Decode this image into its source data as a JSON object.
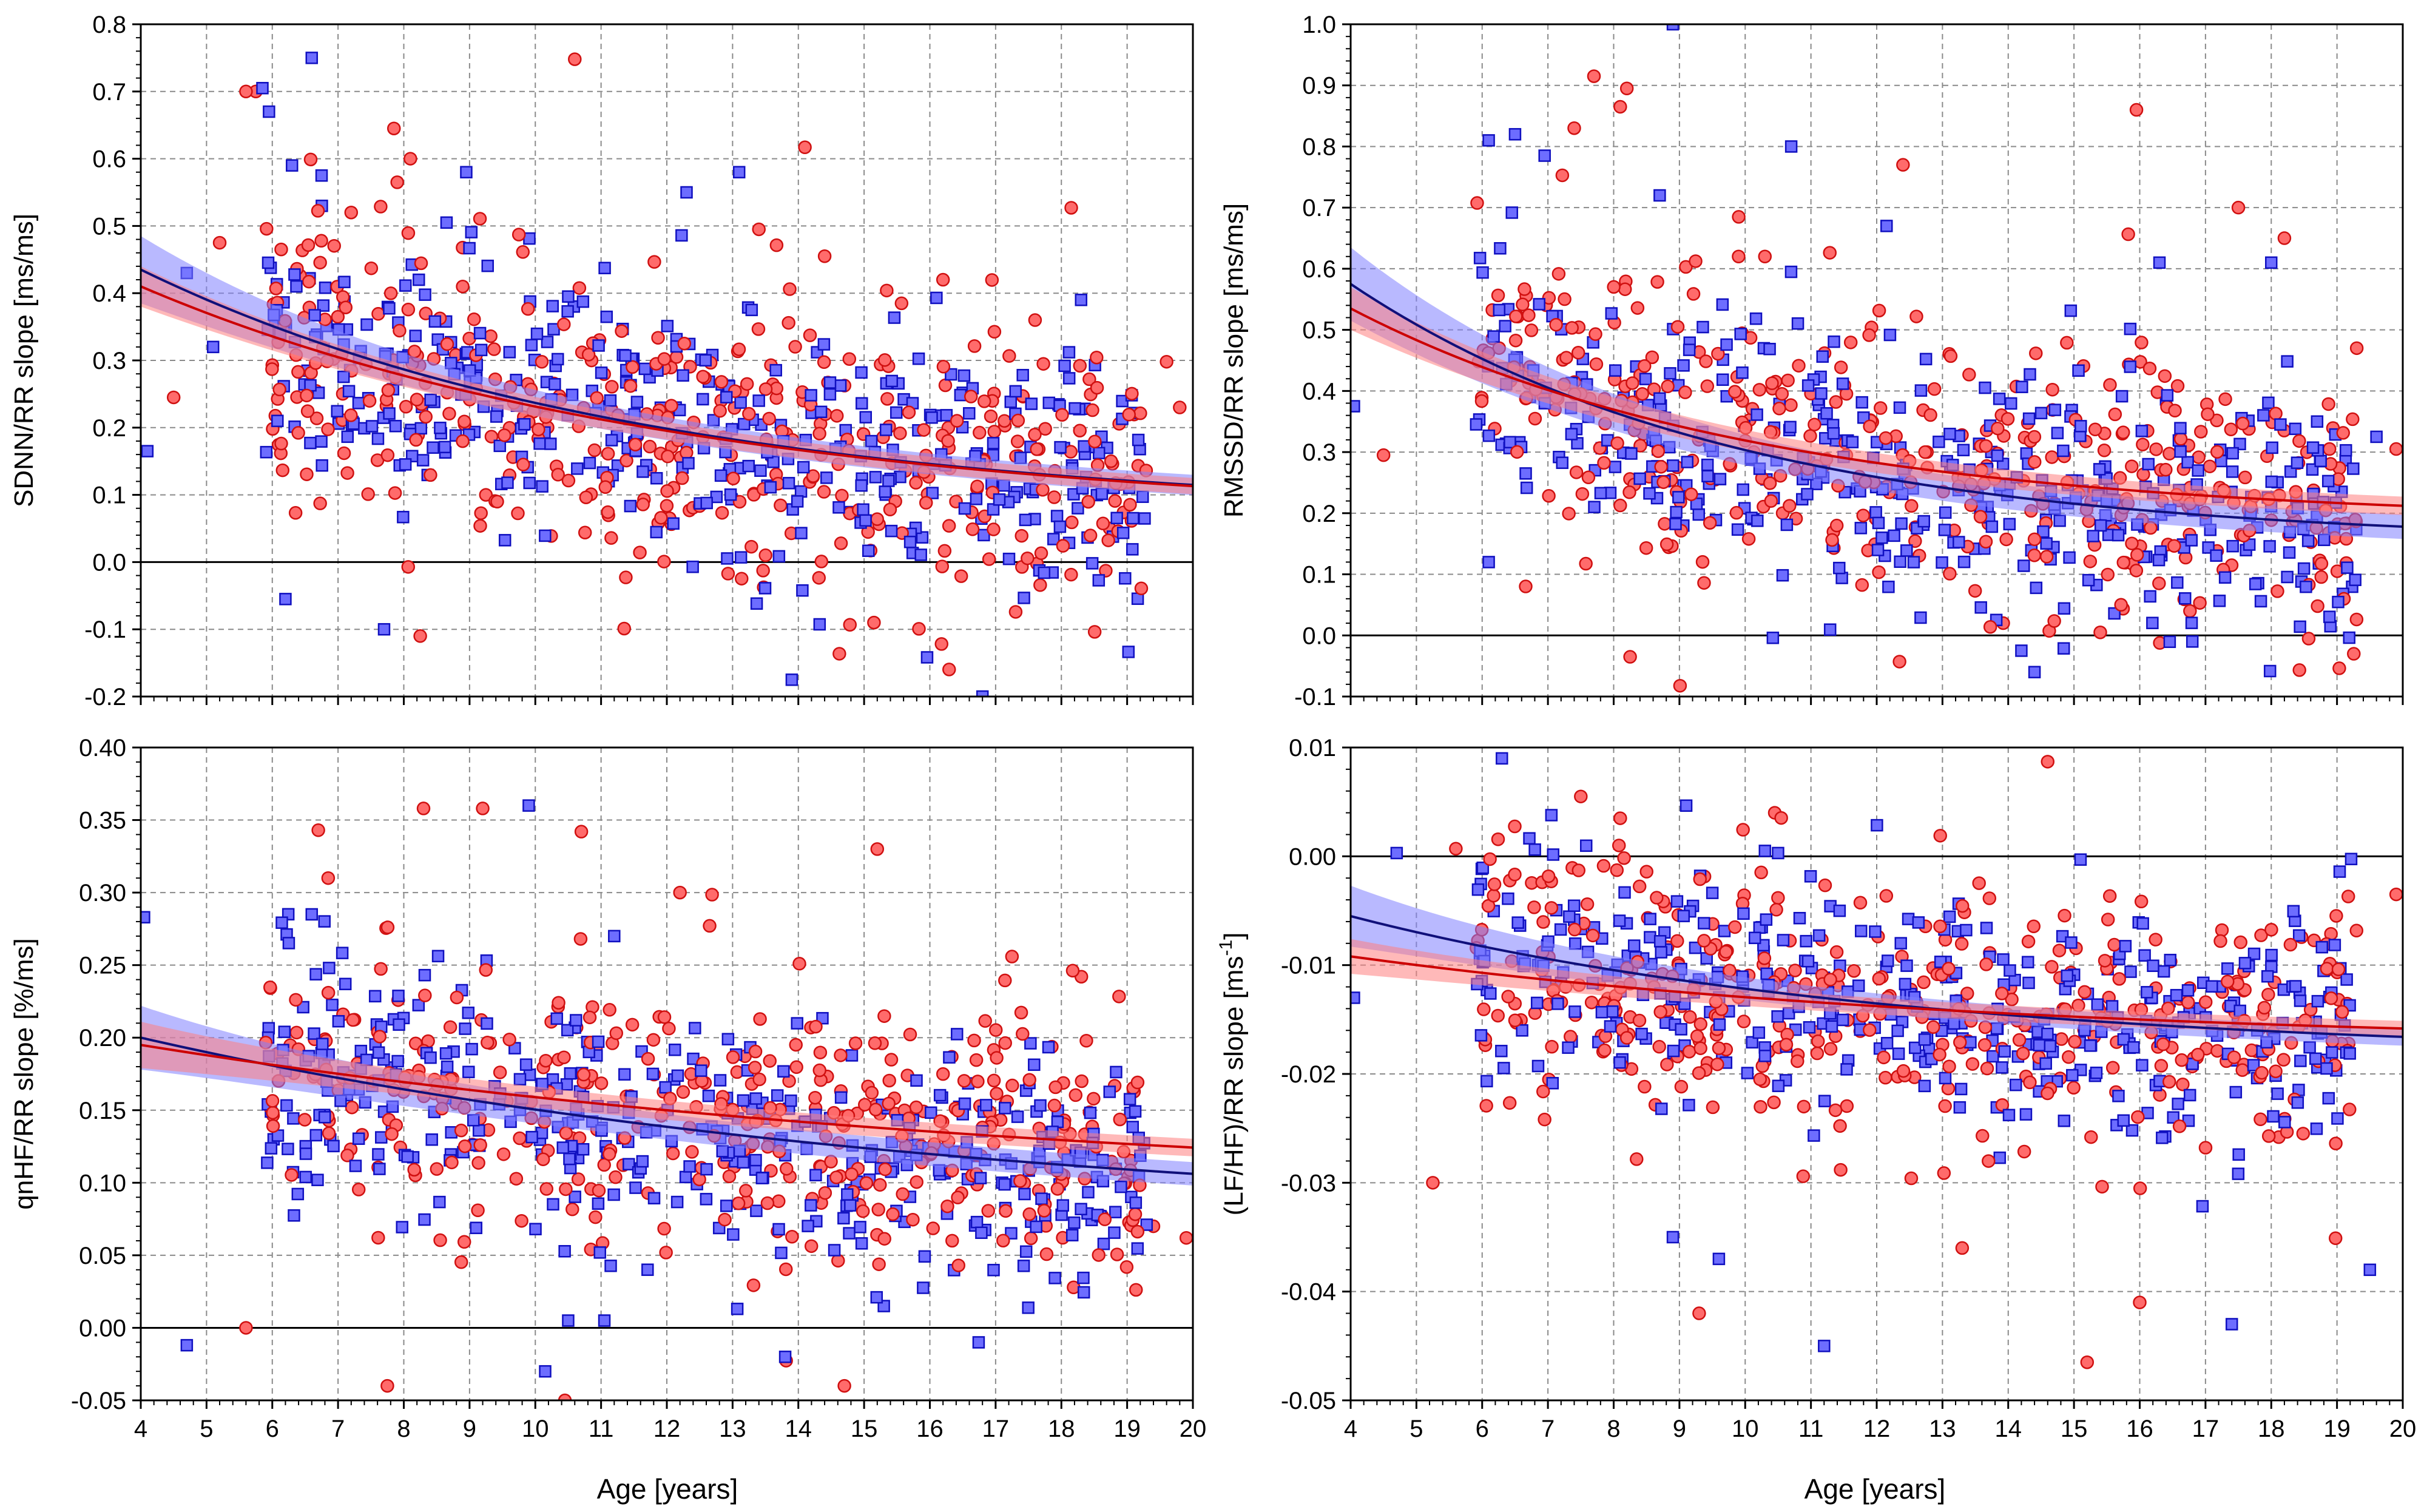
{
  "figure": {
    "xlabel_left": "Age [years]",
    "xlabel_right": "Age [years]"
  },
  "colors": {
    "girls_fill": "#ff6b6b",
    "girls_edge": "#d01010",
    "boys_fill": "#6d6dff",
    "boys_edge": "#1010c0",
    "girls_line": "#cc0000",
    "boys_line": "#10107a",
    "girls_band": "#ff8080",
    "boys_band": "#8080ff"
  },
  "chart_data": [
    {
      "type": "scatter",
      "panel": "top-left",
      "ylabel": "SDNN/RR slope [ms/ms]",
      "xlim": [
        4,
        20
      ],
      "ylim": [
        -0.2,
        0.8
      ],
      "xticks": [
        "4",
        "5",
        "6",
        "7",
        "8",
        "9",
        "10",
        "11",
        "12",
        "13",
        "14",
        "15",
        "16",
        "17",
        "18",
        "19",
        "20"
      ],
      "yticks": [
        "-0.2",
        "-0.1",
        "0.0",
        "0.1",
        "0.2",
        "0.3",
        "0.4",
        "0.5",
        "0.6",
        "0.7",
        "0.8"
      ],
      "yvals": [
        -0.2,
        -0.1,
        0,
        0.1,
        0.2,
        0.3,
        0.4,
        0.5,
        0.6,
        0.7,
        0.8
      ],
      "ystep": 0.1,
      "zero_line": 0,
      "grid": true,
      "series": [
        {
          "marker": "square",
          "fit": {
            "a": 0.435,
            "b": 0.069,
            "k": 0.13
          },
          "band": [
            0.05,
            0.015
          ],
          "cloud": {
            "m": -0.006,
            "s": 0.095,
            "n": 430,
            "seed": 11
          },
          "points": [
            [
              4.1,
              0.165
            ],
            [
              4.7,
              0.43
            ],
            [
              5.85,
              0.705
            ],
            [
              5.95,
              0.67
            ],
            [
              6.6,
              0.75
            ],
            [
              6.3,
              0.59
            ],
            [
              6.75,
              0.575
            ],
            [
              8.95,
              0.58
            ],
            [
              13.1,
              0.58
            ],
            [
              12.3,
              0.55
            ],
            [
              8.65,
              0.505
            ],
            [
              10.5,
              0.395
            ],
            [
              6.2,
              -0.055
            ],
            [
              7.7,
              -0.1
            ],
            [
              13.9,
              -0.175
            ],
            [
              16.8,
              -0.2
            ],
            [
              16.1,
              0.393
            ],
            [
              18.3,
              0.39
            ],
            [
              5.1,
              0.32
            ]
          ]
        },
        {
          "marker": "circle",
          "fit": {
            "a": 0.41,
            "b": 0.062,
            "k": 0.12
          },
          "band": [
            0.03,
            0.012
          ],
          "cloud": {
            "m": -0.004,
            "s": 0.105,
            "n": 430,
            "seed": 23
          },
          "points": [
            [
              5.6,
              0.7
            ],
            [
              5.75,
              0.7
            ],
            [
              10.6,
              0.748
            ],
            [
              7.85,
              0.645
            ],
            [
              8.1,
              0.6
            ],
            [
              14.1,
              0.617
            ],
            [
              18.15,
              0.527
            ],
            [
              7.2,
              0.52
            ],
            [
              13.4,
              0.495
            ],
            [
              5.2,
              0.475
            ],
            [
              4.5,
              0.245
            ],
            [
              7.9,
              0.565
            ],
            [
              8.25,
              -0.11
            ],
            [
              15.15,
              -0.09
            ],
            [
              19.6,
              0.298
            ],
            [
              19.8,
              0.23
            ],
            [
              14.4,
              0.455
            ],
            [
              16.2,
              0.42
            ],
            [
              17.6,
              0.36
            ]
          ]
        }
      ]
    },
    {
      "type": "scatter",
      "panel": "top-right",
      "ylabel": "RMSSD/RR slope [ms/ms]",
      "xlim": [
        4,
        20
      ],
      "ylim": [
        -0.1,
        1.0
      ],
      "xticks": [
        "4",
        "5",
        "6",
        "7",
        "8",
        "9",
        "10",
        "11",
        "12",
        "13",
        "14",
        "15",
        "16",
        "17",
        "18",
        "19",
        "20"
      ],
      "yticks": [
        "-0.1",
        "0.0",
        "0.1",
        "0.2",
        "0.3",
        "0.4",
        "0.5",
        "0.6",
        "0.7",
        "0.8",
        "0.9",
        "1.0"
      ],
      "yvals": [
        -0.1,
        0,
        0.1,
        0.2,
        0.3,
        0.4,
        0.5,
        0.6,
        0.7,
        0.8,
        0.9,
        1.0
      ],
      "ystep": 0.1,
      "zero_line": 0,
      "grid": true,
      "series": [
        {
          "marker": "square",
          "fit": {
            "a": 0.575,
            "b": 0.15,
            "k": 0.17
          },
          "band": [
            0.06,
            0.02
          ],
          "cloud": {
            "m": 0.0,
            "s": 0.11,
            "n": 430,
            "seed": 31
          },
          "points": [
            [
              8.9,
              1.0
            ],
            [
              6.1,
              0.81
            ],
            [
              6.5,
              0.82
            ],
            [
              6.95,
              0.785
            ],
            [
              10.7,
              0.8
            ],
            [
              8.7,
              0.72
            ],
            [
              4.05,
              0.375
            ],
            [
              6.1,
              0.12
            ],
            [
              14.4,
              -0.06
            ],
            [
              14.2,
              -0.025
            ],
            [
              16.8,
              -0.01
            ],
            [
              18.0,
              0.61
            ],
            [
              16.3,
              0.61
            ],
            [
              18.9,
              0.015
            ],
            [
              19.6,
              0.325
            ],
            [
              12.15,
              0.67
            ]
          ]
        },
        {
          "marker": "circle",
          "fit": {
            "a": 0.535,
            "b": 0.185,
            "k": 0.16
          },
          "band": [
            0.035,
            0.015
          ],
          "cloud": {
            "m": 0.0,
            "s": 0.12,
            "n": 430,
            "seed": 43
          },
          "points": [
            [
              7.7,
              0.915
            ],
            [
              8.2,
              0.895
            ],
            [
              8.1,
              0.865
            ],
            [
              7.4,
              0.83
            ],
            [
              15.95,
              0.86
            ],
            [
              12.4,
              0.77
            ],
            [
              8.25,
              -0.035
            ],
            [
              15.4,
              0.005
            ],
            [
              17.5,
              0.7
            ],
            [
              18.2,
              0.65
            ],
            [
              4.5,
              0.295
            ],
            [
              19.9,
              0.305
            ],
            [
              19.3,
              0.47
            ],
            [
              10.3,
              0.62
            ],
            [
              9.9,
              0.62
            ]
          ]
        }
      ]
    },
    {
      "type": "scatter",
      "panel": "bottom-left",
      "ylabel": "qnHF/RR slope [%/ms]",
      "xlim": [
        4,
        20
      ],
      "ylim": [
        -0.05,
        0.4
      ],
      "xticks": [
        "4",
        "5",
        "6",
        "7",
        "8",
        "9",
        "10",
        "11",
        "12",
        "13",
        "14",
        "15",
        "16",
        "17",
        "18",
        "19",
        "20"
      ],
      "yticks": [
        "-0.05",
        "0.00",
        "0.05",
        "0.10",
        "0.15",
        "0.20",
        "0.25",
        "0.30",
        "0.35",
        "0.40"
      ],
      "yvals": [
        -0.05,
        0,
        0.05,
        0.1,
        0.15,
        0.2,
        0.25,
        0.3,
        0.35,
        0.4
      ],
      "ystep": 0.05,
      "zero_line": 0,
      "grid": true,
      "series": [
        {
          "marker": "square",
          "fit": {
            "a": 0.2,
            "b": 0.07,
            "k": 0.08
          },
          "band": [
            0.022,
            0.008
          ],
          "cloud": {
            "m": -0.003,
            "s": 0.042,
            "n": 430,
            "seed": 53
          },
          "points": [
            [
              4.05,
              0.283
            ],
            [
              4.7,
              -0.012
            ],
            [
              9.9,
              0.36
            ],
            [
              10.15,
              -0.03
            ],
            [
              11.05,
              0.005
            ],
            [
              10.5,
              0.005
            ],
            [
              13.8,
              -0.02
            ],
            [
              6.6,
              0.285
            ],
            [
              11.2,
              0.27
            ],
            [
              15.3,
              0.015
            ]
          ]
        },
        {
          "marker": "circle",
          "fit": {
            "a": 0.195,
            "b": 0.09,
            "k": 0.07
          },
          "band": [
            0.016,
            0.006
          ],
          "cloud": {
            "m": -0.002,
            "s": 0.046,
            "n": 430,
            "seed": 67
          },
          "points": [
            [
              6.7,
              0.343
            ],
            [
              6.85,
              0.31
            ],
            [
              8.3,
              0.358
            ],
            [
              9.2,
              0.358
            ],
            [
              10.7,
              0.342
            ],
            [
              15.2,
              0.33
            ],
            [
              12.2,
              0.3
            ],
            [
              5.6,
              0.0
            ],
            [
              7.75,
              -0.04
            ],
            [
              10.45,
              -0.05
            ],
            [
              14.7,
              -0.04
            ],
            [
              19.9,
              0.062
            ],
            [
              19.4,
              0.07
            ]
          ]
        }
      ]
    },
    {
      "type": "scatter",
      "panel": "bottom-right",
      "ylabel": "(LF/HF)/RR slope [ms",
      "ylabel_sup": "-1",
      "ylabel_end": "]",
      "xlim": [
        4,
        20
      ],
      "ylim": [
        -0.05,
        0.01
      ],
      "xticks": [
        "4",
        "5",
        "6",
        "7",
        "8",
        "9",
        "10",
        "11",
        "12",
        "13",
        "14",
        "15",
        "16",
        "17",
        "18",
        "19",
        "20"
      ],
      "yticks": [
        "-0.05",
        "-0.04",
        "-0.03",
        "-0.02",
        "-0.01",
        "0.00",
        "0.01"
      ],
      "yvals": [
        -0.05,
        -0.04,
        -0.03,
        -0.02,
        -0.01,
        0,
        0.01
      ],
      "ystep": 0.01,
      "zero_line": 0,
      "grid": true,
      "series": [
        {
          "marker": "square",
          "fit": {
            "a": -0.0055,
            "b": -0.0185,
            "k": 0.12
          },
          "band": [
            0.0028,
            0.0008
          ],
          "cloud": {
            "m": 0.0002,
            "s": 0.0055,
            "n": 430,
            "seed": 71
          },
          "points": [
            [
              6.3,
              0.009
            ],
            [
              4.7,
              0.0003
            ],
            [
              10.5,
              0.0003
            ],
            [
              10.3,
              0.0005
            ],
            [
              11.2,
              -0.045
            ],
            [
              17.4,
              -0.043
            ],
            [
              19.5,
              -0.038
            ],
            [
              4.05,
              -0.013
            ],
            [
              8.9,
              -0.035
            ],
            [
              9.6,
              -0.037
            ],
            [
              15.1,
              -0.0003
            ]
          ]
        },
        {
          "marker": "circle",
          "fit": {
            "a": -0.0092,
            "b": -0.0175,
            "k": 0.1
          },
          "band": [
            0.0016,
            0.0007
          ],
          "cloud": {
            "m": 0.0,
            "s": 0.006,
            "n": 430,
            "seed": 89
          },
          "points": [
            [
              14.6,
              0.0087
            ],
            [
              7.5,
              0.0055
            ],
            [
              8.1,
              0.0035
            ],
            [
              5.6,
              0.0007
            ],
            [
              10.45,
              0.004
            ],
            [
              9.3,
              -0.042
            ],
            [
              15.2,
              -0.0465
            ],
            [
              5.25,
              -0.03
            ],
            [
              19.9,
              -0.0035
            ],
            [
              16.0,
              -0.041
            ],
            [
              13.3,
              -0.036
            ]
          ]
        }
      ]
    }
  ]
}
